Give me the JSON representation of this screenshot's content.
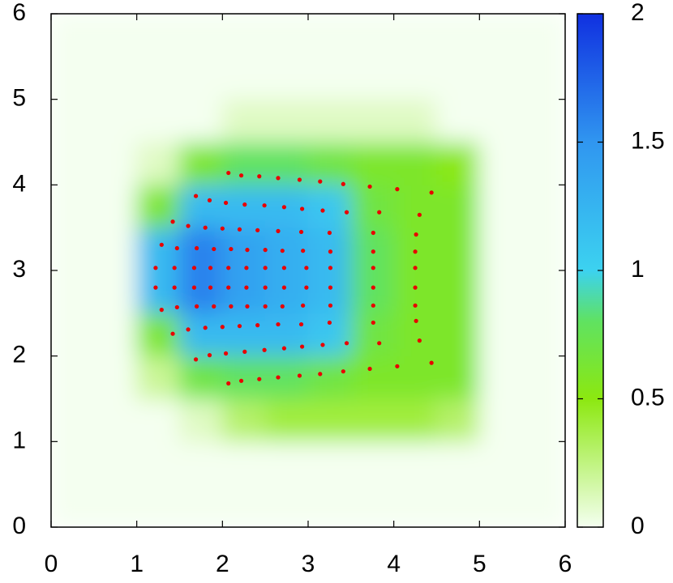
{
  "chart_data": {
    "type": "heatmap",
    "xlim": [
      0,
      6
    ],
    "ylim": [
      0,
      6
    ],
    "xticks": [
      0,
      1,
      2,
      3,
      4,
      5,
      6
    ],
    "yticks": [
      0,
      1,
      2,
      3,
      4,
      5,
      6
    ],
    "zlim": [
      0,
      2
    ],
    "zticks": [
      0,
      0.5,
      1,
      1.5,
      2
    ],
    "z": [
      [
        0,
        0,
        0,
        0,
        0,
        0,
        0,
        0,
        0,
        0,
        0,
        0
      ],
      [
        0,
        0,
        0,
        0,
        0,
        0,
        0,
        0,
        0,
        0,
        0,
        0
      ],
      [
        0,
        0,
        0,
        0.1,
        0.3,
        0.4,
        0.4,
        0.4,
        0.4,
        0.3,
        0,
        0
      ],
      [
        0,
        0,
        0.2,
        0.7,
        0.8,
        0.8,
        0.7,
        0.6,
        0.6,
        0.6,
        0,
        0
      ],
      [
        0,
        0,
        0.6,
        1.2,
        1.2,
        1.2,
        1.1,
        0.7,
        0.6,
        0.6,
        0,
        0
      ],
      [
        0,
        0,
        1.2,
        1.6,
        1.4,
        1.3,
        1.2,
        0.8,
        0.6,
        0.6,
        0,
        0
      ],
      [
        0,
        0,
        1.2,
        1.6,
        1.4,
        1.3,
        1.2,
        0.8,
        0.6,
        0.6,
        0,
        0
      ],
      [
        0,
        0,
        0.6,
        1.2,
        1.2,
        1.2,
        1.1,
        0.7,
        0.6,
        0.6,
        0,
        0
      ],
      [
        0,
        0,
        0.1,
        0.6,
        0.8,
        0.8,
        0.7,
        0.6,
        0.6,
        0.5,
        0,
        0
      ],
      [
        0,
        0,
        0,
        0,
        0.1,
        0.1,
        0.1,
        0.1,
        0.1,
        0,
        0,
        0
      ],
      [
        0,
        0,
        0,
        0,
        0,
        0,
        0,
        0,
        0,
        0,
        0,
        0
      ],
      [
        0,
        0,
        0,
        0,
        0,
        0,
        0,
        0,
        0,
        0,
        0,
        0
      ]
    ],
    "points": {
      "color": "#e80000",
      "x": [
        2.07,
        2.22,
        2.43,
        2.65,
        2.9,
        3.14,
        3.41,
        3.72,
        4.04,
        4.44,
        1.69,
        1.85,
        2.04,
        2.26,
        2.49,
        2.72,
        2.93,
        3.17,
        3.45,
        3.83,
        4.3,
        1.42,
        1.6,
        1.8,
        2.0,
        2.2,
        2.41,
        2.65,
        2.92,
        3.25,
        3.76,
        4.26,
        1.29,
        1.47,
        1.7,
        1.9,
        2.1,
        2.29,
        2.5,
        2.7,
        2.94,
        3.26,
        3.76,
        4.25,
        1.22,
        1.44,
        1.67,
        1.86,
        2.07,
        2.28,
        2.5,
        2.72,
        2.98,
        3.26,
        3.76,
        4.25,
        1.22,
        1.44,
        1.67,
        1.86,
        2.07,
        2.28,
        2.5,
        2.72,
        2.98,
        3.26,
        3.76,
        4.25,
        1.29,
        1.47,
        1.7,
        1.9,
        2.1,
        2.29,
        2.5,
        2.7,
        2.94,
        3.26,
        3.76,
        4.25,
        1.42,
        1.6,
        1.8,
        2.0,
        2.2,
        2.41,
        2.65,
        2.92,
        3.25,
        3.76,
        4.26,
        1.69,
        1.85,
        2.04,
        2.26,
        2.49,
        2.72,
        2.93,
        3.17,
        3.45,
        3.83,
        4.3,
        2.07,
        2.22,
        2.43,
        2.65,
        2.9,
        3.14,
        3.41,
        3.72,
        4.04,
        4.44
      ],
      "y": [
        4.14,
        4.11,
        4.1,
        4.08,
        4.06,
        4.04,
        4.01,
        3.98,
        3.95,
        3.91,
        3.87,
        3.82,
        3.79,
        3.77,
        3.76,
        3.74,
        3.72,
        3.7,
        3.68,
        3.68,
        3.65,
        3.57,
        3.52,
        3.5,
        3.49,
        3.48,
        3.47,
        3.46,
        3.45,
        3.44,
        3.44,
        3.42,
        3.3,
        3.26,
        3.26,
        3.25,
        3.25,
        3.24,
        3.24,
        3.23,
        3.23,
        3.22,
        3.22,
        3.22,
        3.03,
        3.03,
        3.03,
        3.03,
        3.03,
        3.03,
        3.03,
        3.03,
        3.03,
        3.03,
        3.03,
        3.03,
        2.8,
        2.8,
        2.8,
        2.8,
        2.8,
        2.8,
        2.8,
        2.8,
        2.8,
        2.8,
        2.8,
        2.8,
        2.54,
        2.57,
        2.58,
        2.58,
        2.58,
        2.58,
        2.58,
        2.58,
        2.59,
        2.59,
        2.59,
        2.59,
        2.26,
        2.31,
        2.33,
        2.34,
        2.35,
        2.36,
        2.37,
        2.37,
        2.39,
        2.39,
        2.41,
        1.96,
        2.01,
        2.03,
        2.05,
        2.07,
        2.09,
        2.11,
        2.13,
        2.15,
        2.15,
        2.18,
        1.68,
        1.71,
        1.73,
        1.75,
        1.77,
        1.79,
        1.82,
        1.85,
        1.88,
        1.92
      ]
    }
  }
}
